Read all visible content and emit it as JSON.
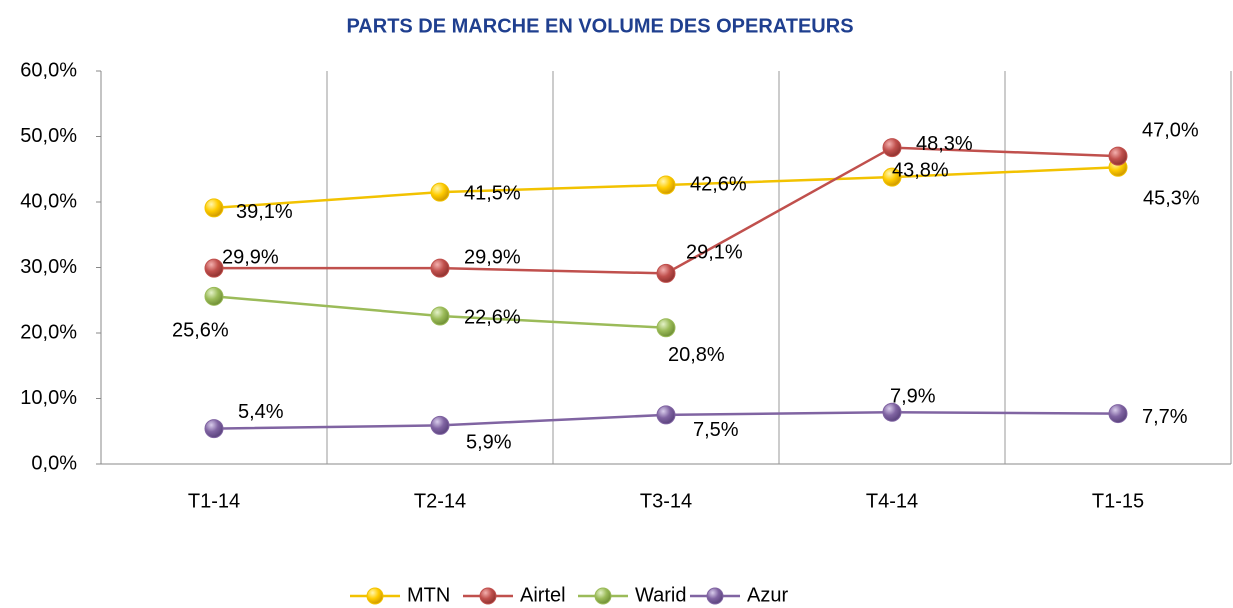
{
  "chart_data": {
    "type": "line",
    "title": "PARTS DE MARCHE EN VOLUME DES OPERATEURS",
    "categories": [
      "T1-14",
      "T2-14",
      "T3-14",
      "T4-14",
      "T1-15"
    ],
    "series": [
      {
        "name": "MTN",
        "color": "#f2c200",
        "values": [
          39.1,
          41.5,
          42.6,
          43.8,
          45.3
        ],
        "value_labels": [
          "39,1%",
          "41,5%",
          "42,6%",
          "43,8%",
          "45,3%"
        ]
      },
      {
        "name": "Airtel",
        "color": "#c0504d",
        "values": [
          29.9,
          29.9,
          29.1,
          48.3,
          47.0
        ],
        "value_labels": [
          "29,9%",
          "29,9%",
          "29,1%",
          "48,3%",
          "47,0%"
        ]
      },
      {
        "name": "Warid",
        "color": "#9bbb59",
        "values": [
          25.6,
          22.6,
          20.8,
          null,
          null
        ],
        "value_labels": [
          "25,6%",
          "22,6%",
          "20,8%",
          null,
          null
        ]
      },
      {
        "name": "Azur",
        "color": "#8064a2",
        "values": [
          5.4,
          5.9,
          7.5,
          7.9,
          7.7
        ],
        "value_labels": [
          "5,4%",
          "5,9%",
          "7,5%",
          "7,9%",
          "7,7%"
        ]
      }
    ],
    "ylim": [
      0,
      60
    ],
    "yticks": [
      {
        "value": 0,
        "label": "0,0%"
      },
      {
        "value": 10,
        "label": "10,0%"
      },
      {
        "value": 20,
        "label": "20,0%"
      },
      {
        "value": 30,
        "label": "30,0%"
      },
      {
        "value": 40,
        "label": "40,0%"
      },
      {
        "value": 50,
        "label": "50,0%"
      },
      {
        "value": 60,
        "label": "60,0%"
      }
    ],
    "legend": "bottom"
  }
}
